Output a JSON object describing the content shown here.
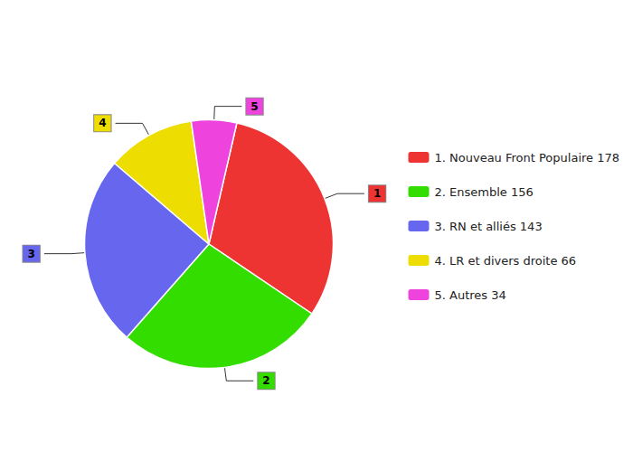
{
  "chart_data": {
    "type": "pie",
    "categories": [
      "1. Nouveau Front Populaire 178",
      "2. Ensemble 156",
      "3. RN et alliés 143",
      "4. LR et divers droite 66",
      "5. Autres 34"
    ],
    "values": [
      178,
      156,
      143,
      66,
      34
    ],
    "colors": [
      "#EE3333",
      "#33DD00",
      "#6666EE",
      "#EEDD00",
      "#EE44DD"
    ],
    "annotations": [
      "1",
      "2",
      "3",
      "4",
      "5"
    ],
    "legend": "right"
  }
}
